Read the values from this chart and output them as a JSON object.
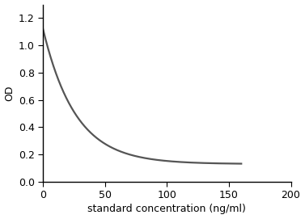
{
  "title": "",
  "xlabel": "standard concentration (ng/ml)",
  "ylabel": "OD",
  "xlim": [
    0,
    200
  ],
  "ylim": [
    0,
    1.3
  ],
  "yticks": [
    0,
    0.2,
    0.4,
    0.6,
    0.8,
    1.0,
    1.2
  ],
  "xticks": [
    0,
    50,
    100,
    150,
    200
  ],
  "line_color": "#555555",
  "line_width": 1.6,
  "curve_x_max": 160,
  "curve_start_y": 1.12,
  "curve_end_y": 0.13,
  "decay_rate": 0.038,
  "background_color": "#ffffff",
  "spine_color": "#000000",
  "tick_color": "#000000",
  "xlabel_fontsize": 9,
  "ylabel_fontsize": 9,
  "tick_labelsize": 9
}
